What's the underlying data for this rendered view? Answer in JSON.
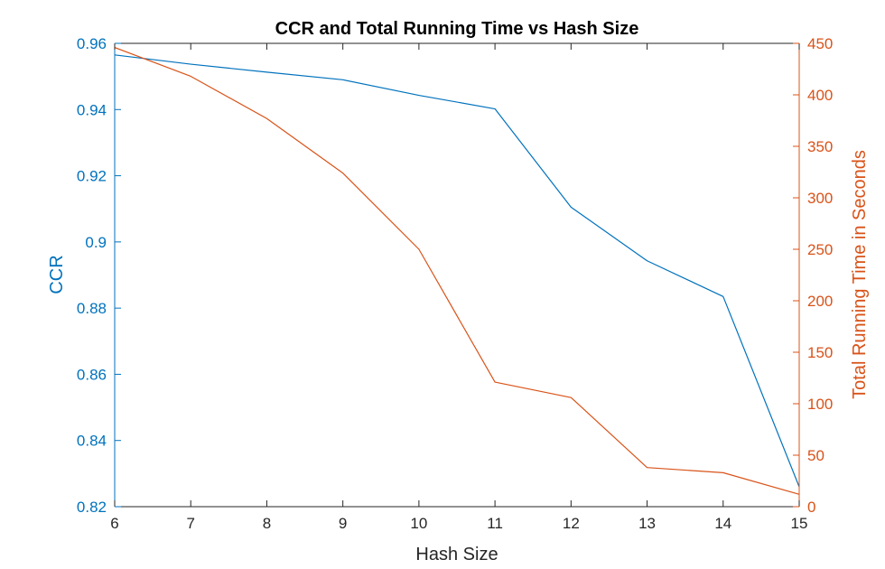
{
  "chart_data": {
    "type": "line",
    "title": "CCR and Total Running Time vs Hash Size",
    "xlabel": "Hash Size",
    "ylabel_left": "CCR",
    "ylabel_right": "Total Running Time in Seconds",
    "x": [
      6,
      7,
      8,
      9,
      10,
      11,
      12,
      13,
      14,
      15
    ],
    "xlim": [
      6,
      15
    ],
    "xticks": [
      6,
      7,
      8,
      9,
      10,
      11,
      12,
      13,
      14,
      15
    ],
    "ylim_left": [
      0.82,
      0.96
    ],
    "yticks_left": [
      "0.82",
      "0.84",
      "0.86",
      "0.88",
      "0.9",
      "0.92",
      "0.94",
      "0.96"
    ],
    "ylim_right": [
      0,
      450
    ],
    "yticks_right": [
      "0",
      "50",
      "100",
      "150",
      "200",
      "250",
      "300",
      "350",
      "400",
      "450"
    ],
    "grid": false,
    "series": [
      {
        "axis": "left",
        "color": "#0072BD",
        "values": [
          0.9565,
          0.9537,
          0.9513,
          0.949,
          0.9443,
          0.9402,
          0.9105,
          0.8943,
          0.8835,
          0.826
        ]
      },
      {
        "axis": "right",
        "color": "#D95319",
        "values": [
          446,
          418,
          377,
          324,
          250,
          121,
          106,
          38,
          33,
          12
        ]
      }
    ]
  }
}
